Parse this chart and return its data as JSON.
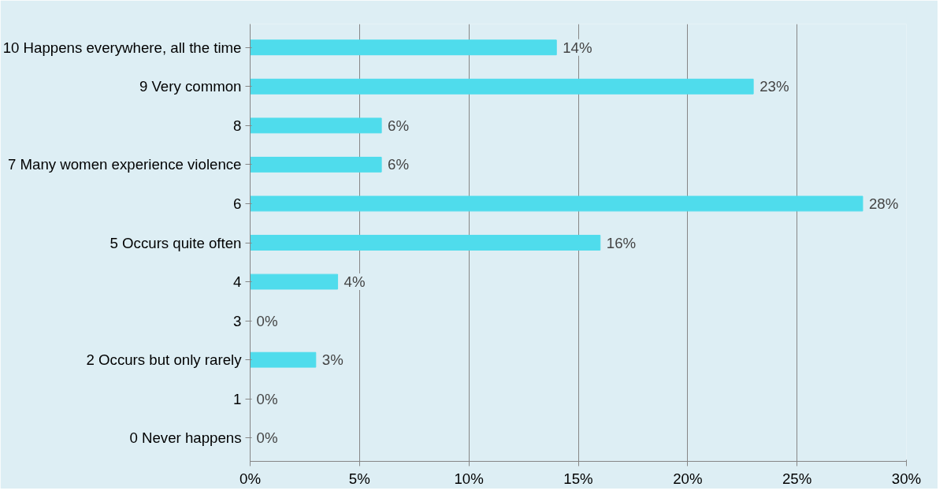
{
  "chart_data": {
    "type": "bar",
    "orientation": "horizontal",
    "categories": [
      "10 Happens everywhere, all the time",
      "9 Very common",
      "8",
      "7 Many women experience violence",
      "6",
      "5 Occurs quite often",
      "4",
      "3",
      "2 Occurs but only rarely",
      "1",
      "0 Never happens"
    ],
    "values": [
      14,
      23,
      6,
      6,
      28,
      16,
      4,
      0,
      3,
      0,
      0
    ],
    "value_labels": [
      "14%",
      "23%",
      "6%",
      "6%",
      "28%",
      "16%",
      "4%",
      "0%",
      "3%",
      "0%",
      "0%"
    ],
    "color": "#4fdcec",
    "xlim": [
      0,
      30
    ],
    "xticks": [
      {
        "value": 0,
        "label": "0%"
      },
      {
        "value": 5,
        "label": "5%"
      },
      {
        "value": 10,
        "label": "10%"
      },
      {
        "value": 15,
        "label": "15%"
      },
      {
        "value": 20,
        "label": "20%"
      },
      {
        "value": 25,
        "label": "25%"
      },
      {
        "value": 30,
        "label": "30%"
      }
    ],
    "grid": "x"
  }
}
